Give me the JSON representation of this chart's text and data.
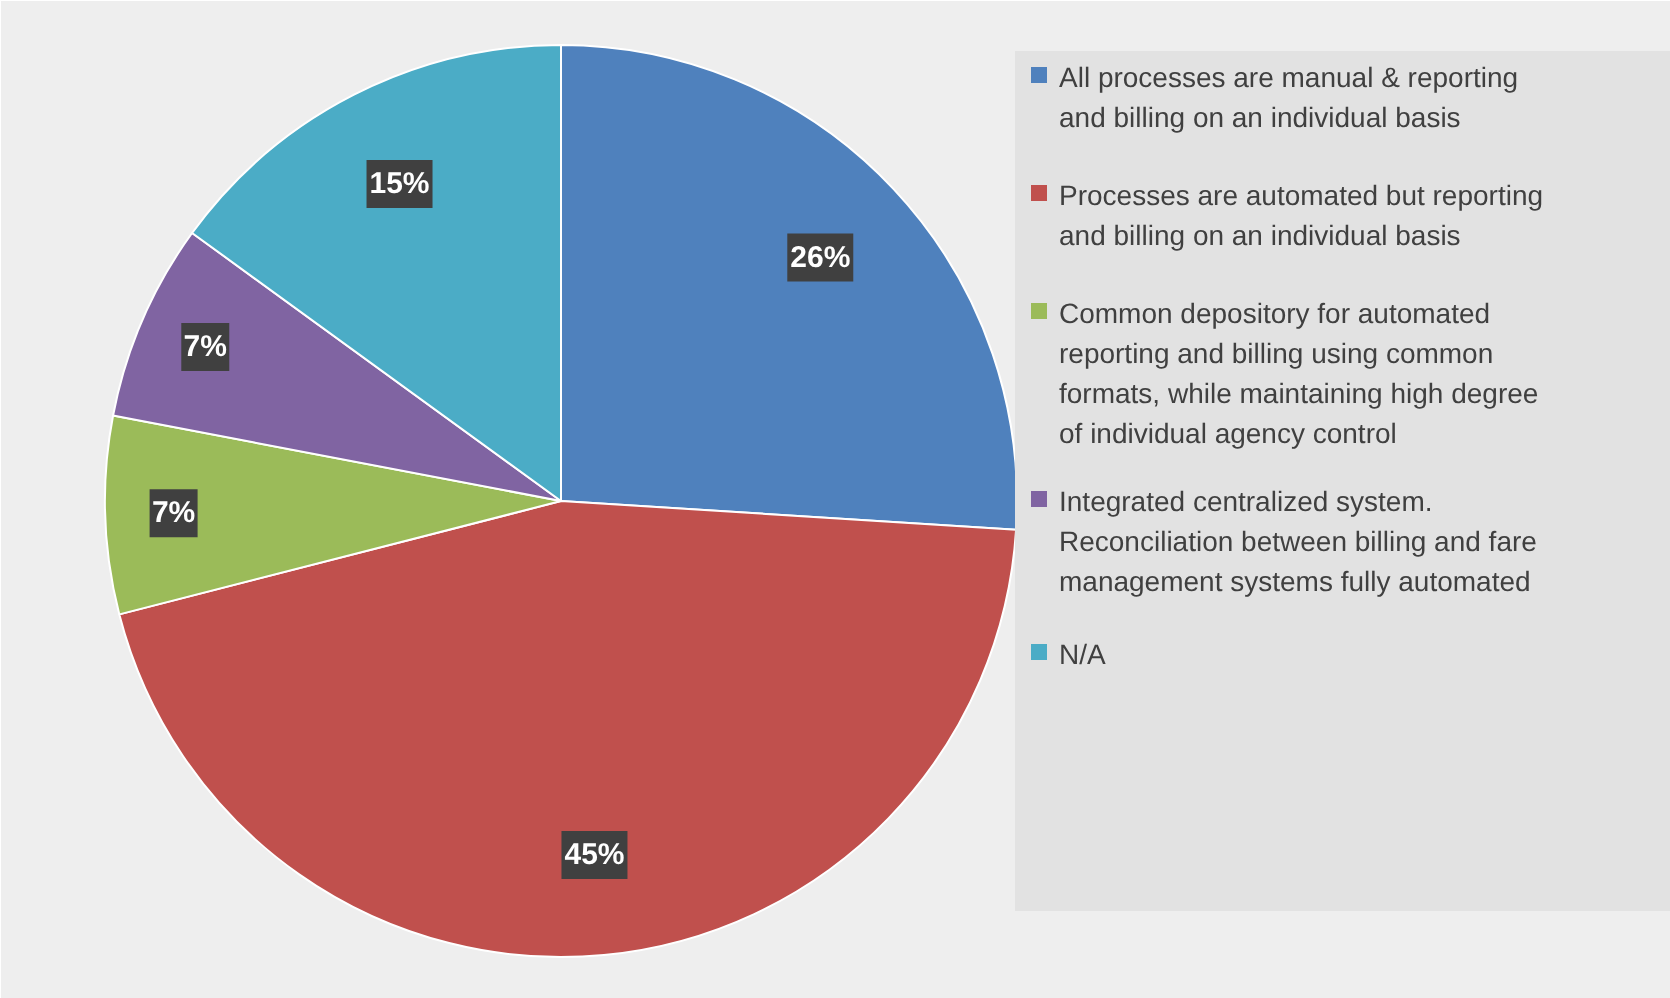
{
  "chart_data": {
    "type": "pie",
    "categories": [
      "All processes are manual & reporting and billing on an individual basis",
      "Processes are automated but reporting and billing on an individual basis",
      "Common depository for automated reporting and billing using common formats, while maintaining high degree of individual agency control",
      "Integrated centralized system. Reconciliation between billing and fare management systems fully automated",
      "N/A"
    ],
    "values": [
      26,
      45,
      7,
      7,
      15
    ],
    "colors": [
      "#4f81bd",
      "#c0504d",
      "#9bbb59",
      "#8064a2",
      "#4bacc6"
    ],
    "value_labels": [
      "26%",
      "45%",
      "7%",
      "7%",
      "15%"
    ],
    "legend": "right"
  }
}
